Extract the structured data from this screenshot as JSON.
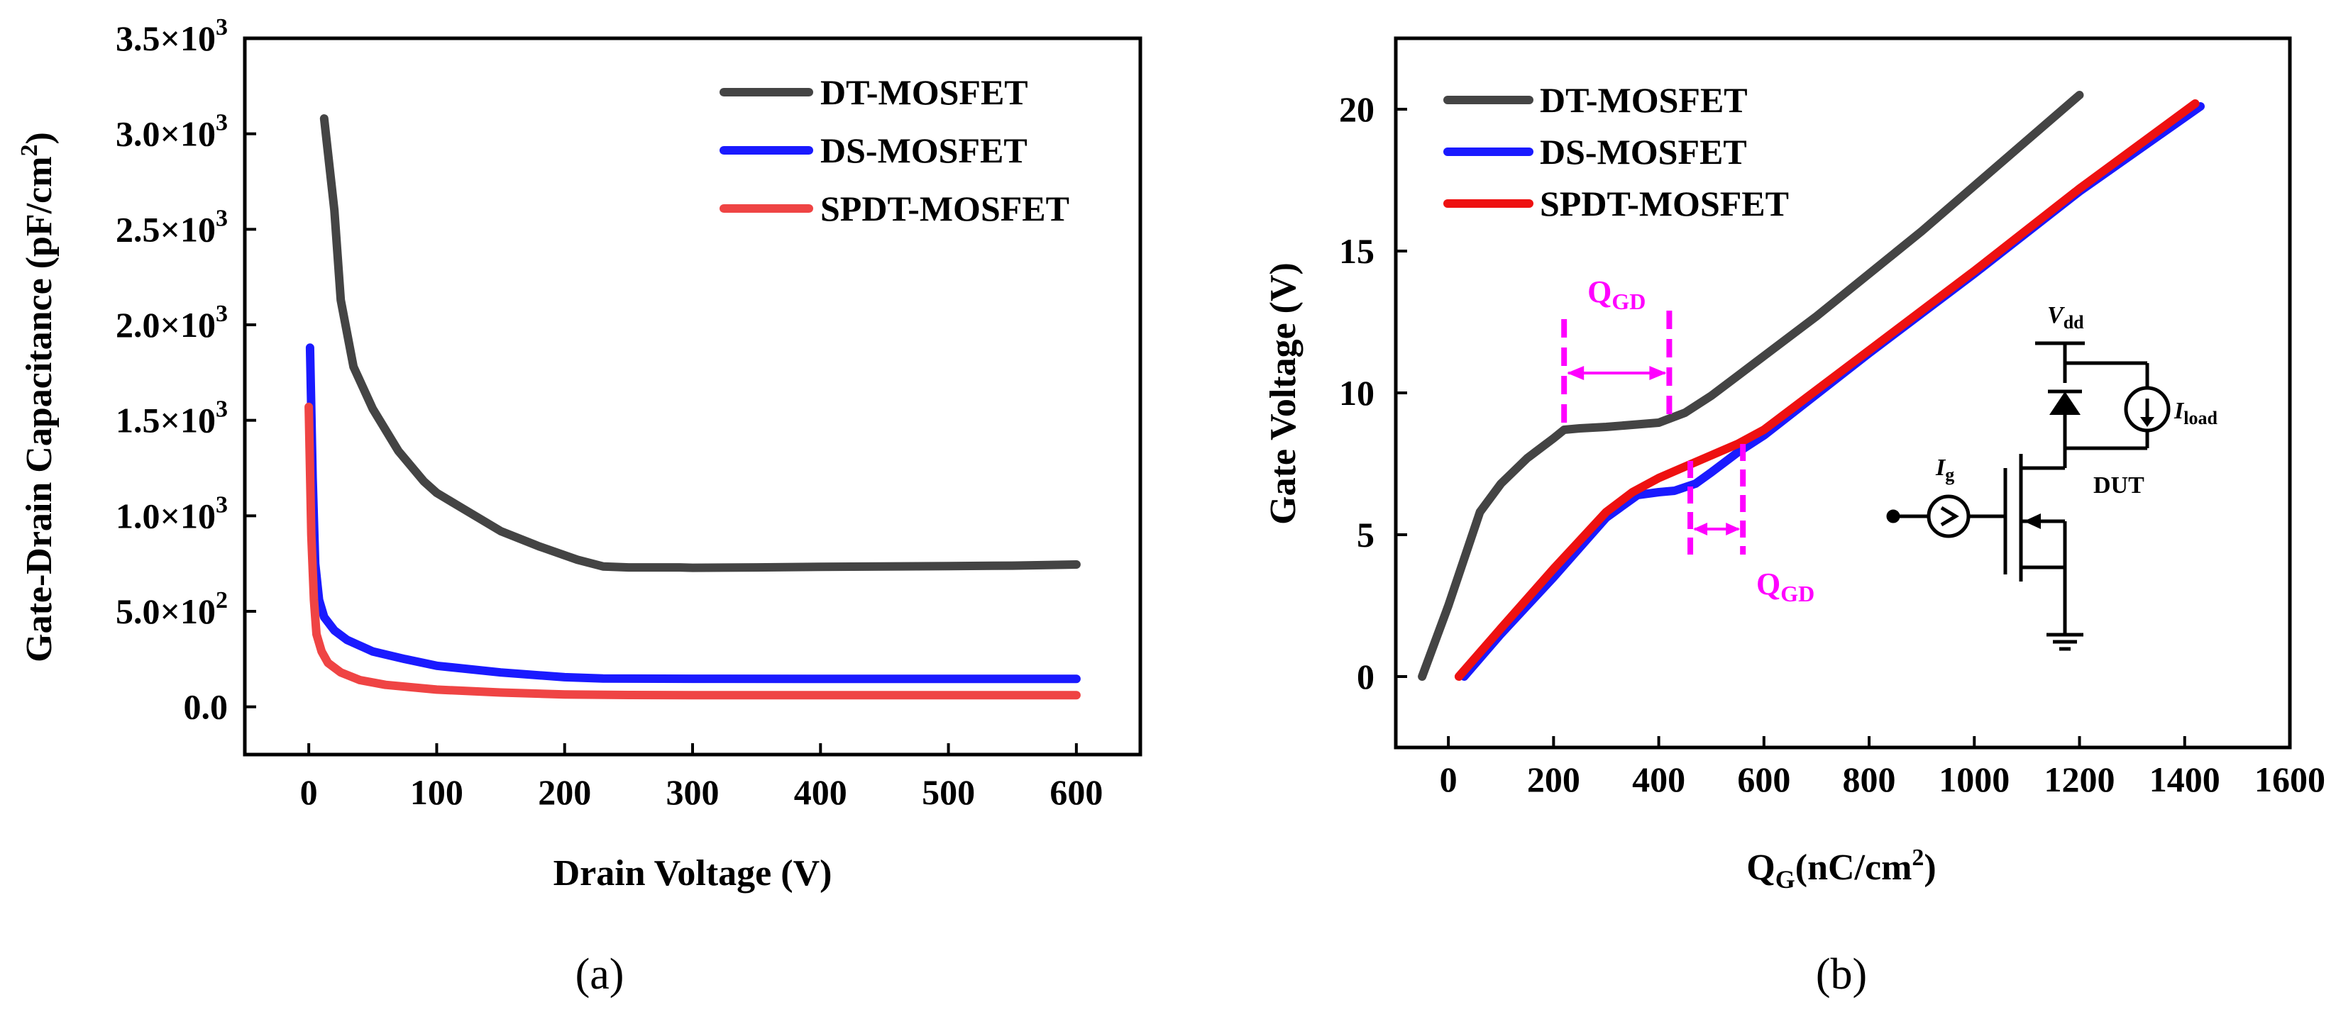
{
  "chart_data": [
    {
      "panel": "(a)",
      "type": "line",
      "xlabel": "Drain Voltage (V)",
      "ylabel": "Gate-Drain Capacitance (pF/cm²)",
      "xlim": [
        -50,
        650
      ],
      "ylim": [
        -250,
        3500
      ],
      "xticks": [
        0,
        100,
        200,
        300,
        400,
        500,
        600
      ],
      "yticks": [
        {
          "value": 0,
          "mantissa": "0.0",
          "exp": ""
        },
        {
          "value": 500,
          "mantissa": "5.0×10",
          "exp": "2"
        },
        {
          "value": 1000,
          "mantissa": "1.0×10",
          "exp": "3"
        },
        {
          "value": 1500,
          "mantissa": "1.5×10",
          "exp": "3"
        },
        {
          "value": 2000,
          "mantissa": "2.0×10",
          "exp": "3"
        },
        {
          "value": 2500,
          "mantissa": "2.5×10",
          "exp": "3"
        },
        {
          "value": 3000,
          "mantissa": "3.0×10",
          "exp": "3"
        },
        {
          "value": 3500,
          "mantissa": "3.5×10",
          "exp": "3"
        }
      ],
      "legend_position": "top-right",
      "series": [
        {
          "name": "DT-MOSFET",
          "color": "#444444",
          "points": [
            [
              12,
              3080
            ],
            [
              20,
              2600
            ],
            [
              25,
              2130
            ],
            [
              35,
              1780
            ],
            [
              50,
              1560
            ],
            [
              70,
              1340
            ],
            [
              90,
              1180
            ],
            [
              100,
              1120
            ],
            [
              120,
              1040
            ],
            [
              150,
              920
            ],
            [
              180,
              840
            ],
            [
              210,
              770
            ],
            [
              230,
              735
            ],
            [
              250,
              730
            ],
            [
              290,
              730
            ],
            [
              300,
              728
            ],
            [
              350,
              730
            ],
            [
              400,
              733
            ],
            [
              450,
              735
            ],
            [
              500,
              737
            ],
            [
              550,
              739
            ],
            [
              600,
              745
            ]
          ]
        },
        {
          "name": "DS-MOSFET",
          "color": "#1a1aff",
          "points": [
            [
              1,
              1880
            ],
            [
              3,
              1200
            ],
            [
              5,
              750
            ],
            [
              8,
              560
            ],
            [
              12,
              470
            ],
            [
              20,
              400
            ],
            [
              30,
              350
            ],
            [
              50,
              290
            ],
            [
              75,
              250
            ],
            [
              100,
              215
            ],
            [
              150,
              180
            ],
            [
              200,
              155
            ],
            [
              230,
              148
            ],
            [
              300,
              147
            ],
            [
              400,
              146
            ],
            [
              500,
              146
            ],
            [
              600,
              146
            ]
          ]
        },
        {
          "name": "SPDT-MOSFET",
          "color": "#ef4444",
          "points": [
            [
              0,
              1570
            ],
            [
              2,
              900
            ],
            [
              4,
              560
            ],
            [
              6,
              380
            ],
            [
              10,
              290
            ],
            [
              15,
              230
            ],
            [
              25,
              180
            ],
            [
              40,
              140
            ],
            [
              60,
              115
            ],
            [
              100,
              90
            ],
            [
              150,
              75
            ],
            [
              200,
              65
            ],
            [
              250,
              62
            ],
            [
              300,
              61
            ],
            [
              400,
              61
            ],
            [
              500,
              61
            ],
            [
              600,
              61
            ]
          ]
        }
      ]
    },
    {
      "panel": "(b)",
      "type": "line",
      "xlabel_main": "Q",
      "xlabel_sub": "G",
      "xlabel_unit": "(nC/cm",
      "xlabel_sup": "2",
      "xlabel_close": ")",
      "ylabel": "Gate Voltage (V)",
      "xlim": [
        -100,
        1600
      ],
      "ylim": [
        -2.5,
        22.5
      ],
      "xticks": [
        0,
        200,
        400,
        600,
        800,
        1000,
        1200,
        1400,
        1600
      ],
      "yticks": [
        0,
        5,
        10,
        15,
        20
      ],
      "legend_position": "top-left",
      "series": [
        {
          "name": "DT-MOSFET",
          "color": "#444444",
          "points": [
            [
              -50,
              0
            ],
            [
              0,
              2.5
            ],
            [
              60,
              5.8
            ],
            [
              100,
              6.8
            ],
            [
              150,
              7.7
            ],
            [
              200,
              8.4
            ],
            [
              220,
              8.7
            ],
            [
              250,
              8.75
            ],
            [
              300,
              8.8
            ],
            [
              400,
              8.95
            ],
            [
              450,
              9.3
            ],
            [
              500,
              9.9
            ],
            [
              550,
              10.6
            ],
            [
              600,
              11.3
            ],
            [
              700,
              12.7
            ],
            [
              800,
              14.2
            ],
            [
              900,
              15.7
            ],
            [
              1000,
              17.3
            ],
            [
              1100,
              18.9
            ],
            [
              1200,
              20.5
            ]
          ]
        },
        {
          "name": "DS-MOSFET",
          "color": "#1a1aff",
          "points": [
            [
              30,
              0
            ],
            [
              100,
              1.5
            ],
            [
              200,
              3.5
            ],
            [
              300,
              5.6
            ],
            [
              360,
              6.4
            ],
            [
              400,
              6.5
            ],
            [
              430,
              6.55
            ],
            [
              470,
              6.8
            ],
            [
              500,
              7.2
            ],
            [
              550,
              7.9
            ],
            [
              600,
              8.5
            ],
            [
              800,
              11.4
            ],
            [
              1000,
              14.2
            ],
            [
              1200,
              17.1
            ],
            [
              1430,
              20.1
            ]
          ]
        },
        {
          "name": "SPDT-MOSFET",
          "color": "#ee1111",
          "points": [
            [
              20,
              0
            ],
            [
              100,
              1.7
            ],
            [
              200,
              3.8
            ],
            [
              300,
              5.8
            ],
            [
              350,
              6.5
            ],
            [
              400,
              7.0
            ],
            [
              450,
              7.4
            ],
            [
              500,
              7.8
            ],
            [
              550,
              8.2
            ],
            [
              600,
              8.7
            ],
            [
              800,
              11.5
            ],
            [
              1000,
              14.3
            ],
            [
              1200,
              17.2
            ],
            [
              1420,
              20.2
            ]
          ]
        }
      ],
      "annotations": [
        {
          "label_main": "Q",
          "label_sub": "GD",
          "from_x": 220,
          "to_x": 420,
          "color": "#ff00ff"
        },
        {
          "label_main": "Q",
          "label_sub": "GD",
          "from_x": 460,
          "to_x": 560,
          "color": "#ff00ff"
        }
      ],
      "inset_circuit": {
        "vdd_main": "V",
        "vdd_sub": "dd",
        "iload_main": "I",
        "iload_sub": "load",
        "ig_main": "I",
        "ig_sub": "g",
        "dut": "DUT"
      }
    }
  ]
}
